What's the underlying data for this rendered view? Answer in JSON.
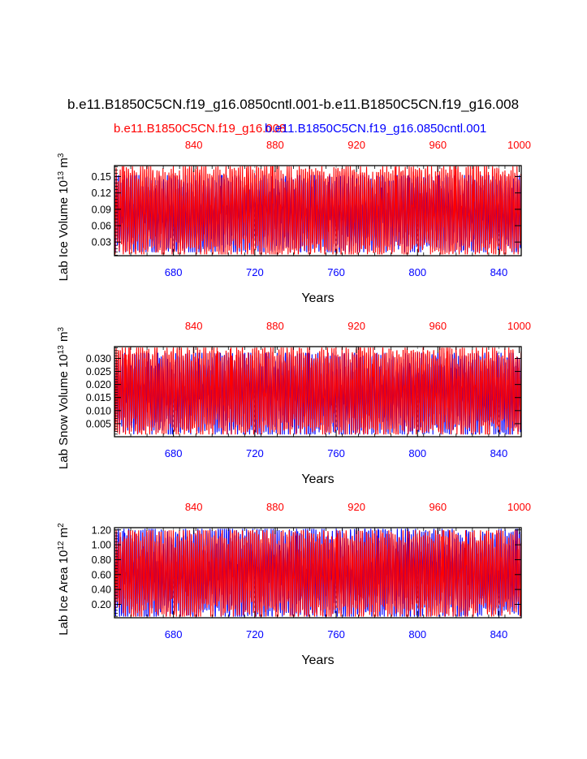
{
  "title": "b.e11.B1850C5CN.f19_g16.0850cntl.001-b.e11.B1850C5CN.f19_g16.008",
  "legend": {
    "case_red": "b.e11.B1850C5CN.f19_g16.008",
    "case_blue": "b.e11.B1850C5CN.f19_g16.0850cntl.001"
  },
  "colors": {
    "red": "#ff0000",
    "blue": "#0000ff",
    "axis": "#000000",
    "grid": "#777777"
  },
  "chart_data": [
    {
      "type": "line",
      "ylabel": "Lab Ice Volume",
      "yunit_pre": "10",
      "yunit_exp": "13",
      "yunit_unit": "m",
      "yunit_unit_exp": "3",
      "xlabel": "Years",
      "x_bottom": {
        "range": [
          651,
          851
        ],
        "ticks": [
          680,
          720,
          760,
          800,
          840
        ],
        "color": "blue"
      },
      "x_top": {
        "range": [
          801,
          1001
        ],
        "ticks": [
          840,
          880,
          920,
          960,
          1000
        ],
        "color": "red"
      },
      "ylim": [
        0.005,
        0.17
      ],
      "yticks": [
        "0.03",
        "0.06",
        "0.09",
        "0.12",
        "0.15"
      ],
      "ytick_values": [
        0.03,
        0.06,
        0.09,
        0.12,
        0.15
      ],
      "series": [
        {
          "name": "b.e11.B1850C5CN.f19_g16.0850cntl.001",
          "color": "blue",
          "axis": "bottom",
          "min": 0.012,
          "max": 0.152,
          "mean": 0.085,
          "samples": 2400
        },
        {
          "name": "b.e11.B1850C5CN.f19_g16.008",
          "color": "red",
          "axis": "top",
          "min": 0.008,
          "max": 0.168,
          "mean": 0.085,
          "samples": 2400
        }
      ]
    },
    {
      "type": "line",
      "ylabel": "Lab Snow Volume",
      "yunit_pre": "10",
      "yunit_exp": "13",
      "yunit_unit": "m",
      "yunit_unit_exp": "3",
      "xlabel": "Years",
      "x_bottom": {
        "range": [
          651,
          851
        ],
        "ticks": [
          680,
          720,
          760,
          800,
          840
        ],
        "color": "blue"
      },
      "x_top": {
        "range": [
          801,
          1001
        ],
        "ticks": [
          840,
          880,
          920,
          960,
          1000
        ],
        "color": "red"
      },
      "ylim": [
        0.0,
        0.0345
      ],
      "yticks": [
        "0.005",
        "0.010",
        "0.015",
        "0.020",
        "0.025",
        "0.030"
      ],
      "ytick_values": [
        0.005,
        0.01,
        0.015,
        0.02,
        0.025,
        0.03
      ],
      "series": [
        {
          "name": "b.e11.B1850C5CN.f19_g16.0850cntl.001",
          "color": "blue",
          "axis": "bottom",
          "min": 0.001,
          "max": 0.032,
          "mean": 0.011,
          "samples": 2400
        },
        {
          "name": "b.e11.B1850C5CN.f19_g16.008",
          "color": "red",
          "axis": "top",
          "min": 0.001,
          "max": 0.034,
          "mean": 0.011,
          "samples": 2400
        }
      ]
    },
    {
      "type": "line",
      "ylabel": "Lab Ice Area",
      "yunit_pre": "10",
      "yunit_exp": "12",
      "yunit_unit": "m",
      "yunit_unit_exp": "2",
      "xlabel": "Years",
      "x_bottom": {
        "range": [
          651,
          851
        ],
        "ticks": [
          680,
          720,
          760,
          800,
          840
        ],
        "color": "blue"
      },
      "x_top": {
        "range": [
          801,
          1001
        ],
        "ticks": [
          840,
          880,
          920,
          960,
          1000
        ],
        "color": "red"
      },
      "ylim": [
        0.02,
        1.23
      ],
      "yticks": [
        "0.20",
        "0.40",
        "0.60",
        "0.80",
        "1.00",
        "1.20"
      ],
      "ytick_values": [
        0.2,
        0.4,
        0.6,
        0.8,
        1.0,
        1.2
      ],
      "series": [
        {
          "name": "b.e11.B1850C5CN.f19_g16.0850cntl.001",
          "color": "blue",
          "axis": "bottom",
          "min": 0.04,
          "max": 1.21,
          "mean": 0.62,
          "samples": 2400
        },
        {
          "name": "b.e11.B1850C5CN.f19_g16.008",
          "color": "red",
          "axis": "top",
          "min": 0.04,
          "max": 1.19,
          "mean": 0.62,
          "samples": 2400
        }
      ]
    }
  ]
}
